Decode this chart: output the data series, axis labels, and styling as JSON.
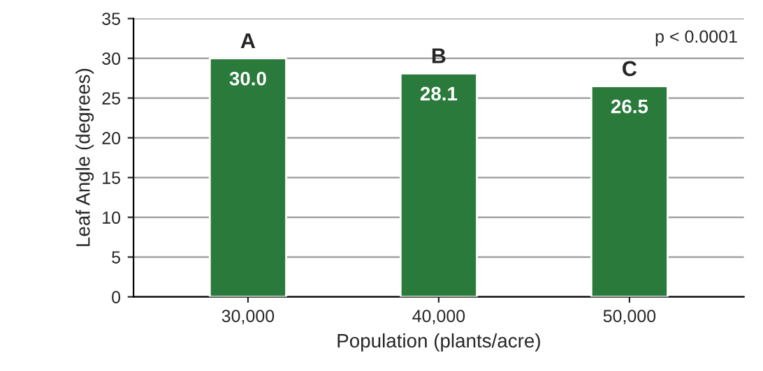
{
  "chart_data": {
    "type": "bar",
    "xlabel": "Population (plants/acre)",
    "ylabel": "Leaf Angle (degrees)",
    "categories": [
      "30,000",
      "40,000",
      "50,000"
    ],
    "values": [
      30.0,
      28.1,
      26.5
    ],
    "value_labels": [
      "30.0",
      "28.1",
      "26.5"
    ],
    "color": "#2a7a3b",
    "ylim": [
      0,
      35
    ],
    "yticks": [
      0,
      5,
      10,
      15,
      20,
      25,
      30,
      35
    ],
    "grid": "y",
    "annotations": [
      {
        "text": "A",
        "x": "30,000",
        "y": 30.0
      },
      {
        "text": "B",
        "x": "40,000",
        "y": 28.1
      },
      {
        "text": "C",
        "x": "50,000",
        "y": 26.5
      },
      "p < 0.0001"
    ]
  }
}
